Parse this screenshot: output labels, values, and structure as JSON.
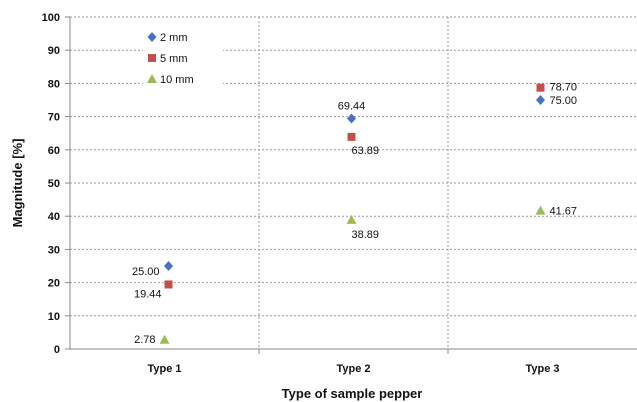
{
  "chart_data": {
    "type": "scatter",
    "categories": [
      "Type 1",
      "Type 2",
      "Type 3"
    ],
    "xlabel": "Type of sample pepper",
    "ylabel": "Magnitude [%]",
    "ylim": [
      0,
      100
    ],
    "yticks": [
      0,
      10,
      20,
      30,
      40,
      50,
      60,
      70,
      80,
      90,
      100
    ],
    "grid": true,
    "legend_position": "top-left",
    "series": [
      {
        "name": "2 mm",
        "marker": "diamond",
        "color": "#4472C4",
        "values": [
          25.0,
          69.44,
          75.0
        ],
        "labels": [
          "25.00",
          "69.44",
          "75.00"
        ]
      },
      {
        "name": "5 mm",
        "marker": "square",
        "color": "#C0504D",
        "values": [
          19.44,
          63.89,
          78.7
        ],
        "labels": [
          "19.44",
          "63.89",
          "78.70"
        ]
      },
      {
        "name": "10 mm",
        "marker": "triangle",
        "color": "#9BBB59",
        "values": [
          2.78,
          38.89,
          41.67
        ],
        "labels": [
          "2.78",
          "38.89",
          "41.67"
        ]
      }
    ]
  }
}
